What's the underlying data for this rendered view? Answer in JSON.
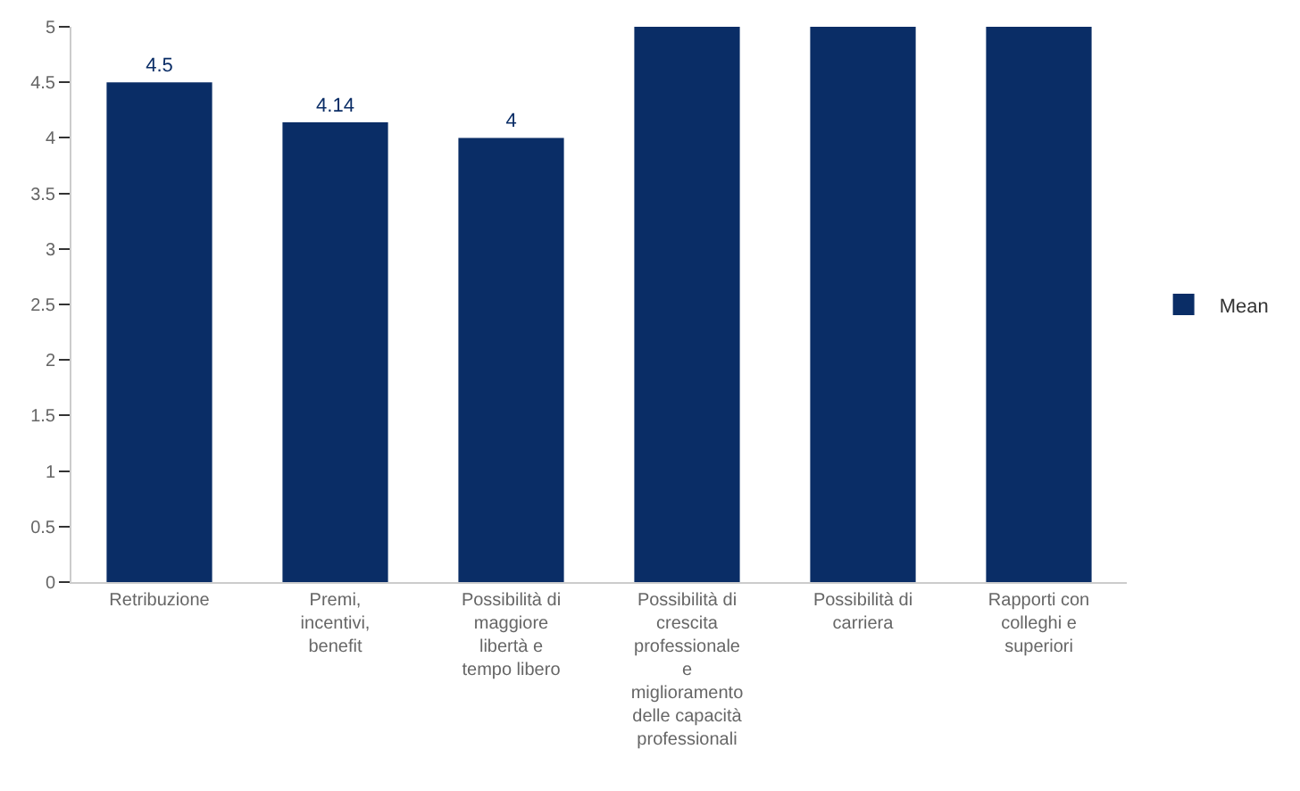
{
  "chart_data": {
    "type": "bar",
    "categories": [
      "Retribuzione",
      "Premi, incentivi, benefit",
      "Possibilità di maggiore libertà e tempo libero",
      "Possibilità di crescita professionale e miglioramento delle capacità professionali",
      "Possibilità di carriera",
      "Rapporti con colleghi e superiori"
    ],
    "series": [
      {
        "name": "Mean",
        "color": "#0a2d66",
        "values": [
          4.5,
          4.14,
          4,
          5,
          5,
          5
        ]
      }
    ],
    "value_labels": [
      "4.5",
      "4.14",
      "4",
      null,
      null,
      null
    ],
    "ylim": [
      0,
      5
    ],
    "yticks": [
      0,
      0.5,
      1,
      1.5,
      2,
      2.5,
      3,
      3.5,
      4,
      4.5,
      5
    ],
    "grid": false,
    "legend": "right"
  }
}
